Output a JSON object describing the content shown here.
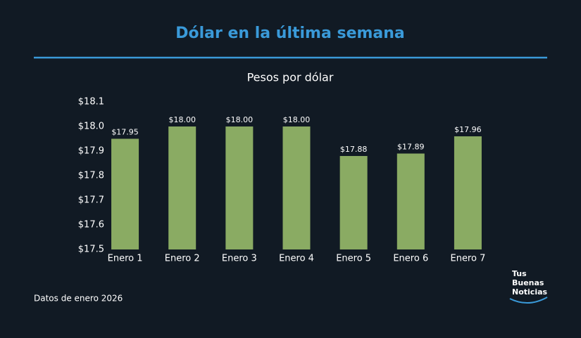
{
  "chart_data": {
    "type": "bar",
    "title": "Dólar en la última semana",
    "subtitle": "Pesos por dólar",
    "categories": [
      "Enero 1",
      "Enero 2",
      "Enero 3",
      "Enero 4",
      "Enero 5",
      "Enero 6",
      "Enero 7"
    ],
    "values": [
      17.95,
      18.0,
      18.0,
      18.0,
      17.88,
      17.89,
      17.96
    ],
    "value_labels": [
      "$17.95",
      "$18.00",
      "$18.00",
      "$18.00",
      "$17.88",
      "$17.89",
      "$17.96"
    ],
    "color": "#8aab63",
    "ylim": [
      17.5,
      18.1
    ],
    "yticks": [
      {
        "value": 17.5,
        "label": "$17.5"
      },
      {
        "value": 17.6,
        "label": "$17.6"
      },
      {
        "value": 17.7,
        "label": "$17.7"
      },
      {
        "value": 17.8,
        "label": "$17.8"
      },
      {
        "value": 17.9,
        "label": "$17.9"
      },
      {
        "value": 18.0,
        "label": "$18.0"
      },
      {
        "value": 18.1,
        "label": "$18.1"
      }
    ],
    "grid": false,
    "note": "Datos de enero 2026",
    "logo": [
      "Tus",
      "Buenas",
      "Noticias"
    ]
  }
}
